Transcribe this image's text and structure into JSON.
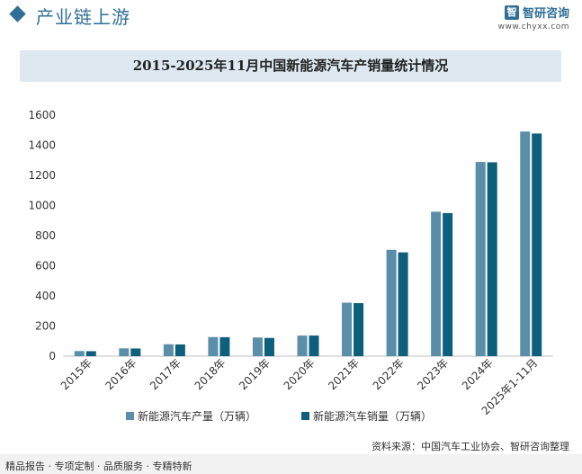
{
  "header": {
    "section_title": "产业链上游",
    "logo_name": "智研咨询",
    "logo_mark": "智",
    "logo_url": "www.chyxx.com"
  },
  "chart_title": "2015-2025年11月中国新能源汽车产销量统计情况",
  "source": "资料来源：中国汽车工业协会、智研咨询整理",
  "footer_tagline": "精品报告 · 专项定制 · 品质服务 · 专精特新",
  "colors": {
    "production": "#5b8ea8",
    "sales": "#0e5f7c",
    "accent": "#2f6f98"
  },
  "chart_data": {
    "type": "bar",
    "title": "2015-2025年11月中国新能源汽车产销量统计情况",
    "categories": [
      "2015年",
      "2016年",
      "2017年",
      "2018年",
      "2019年",
      "2020年",
      "2021年",
      "2022年",
      "2023年",
      "2024年",
      "2025年1-11月"
    ],
    "series": [
      {
        "name": "新能源汽车产量（万辆）",
        "values": [
          34,
          52,
          79,
          127,
          124,
          137,
          355,
          706,
          959,
          1289,
          1491
        ]
      },
      {
        "name": "新能源汽车销量（万辆）",
        "values": [
          33,
          51,
          78,
          126,
          121,
          137,
          352,
          689,
          950,
          1287,
          1478
        ]
      }
    ],
    "ylim": [
      0,
      1600
    ],
    "yticks": [
      0,
      200,
      400,
      600,
      800,
      1000,
      1200,
      1400,
      1600
    ],
    "xlabel": "",
    "ylabel": "",
    "legend_position": "bottom-center"
  }
}
